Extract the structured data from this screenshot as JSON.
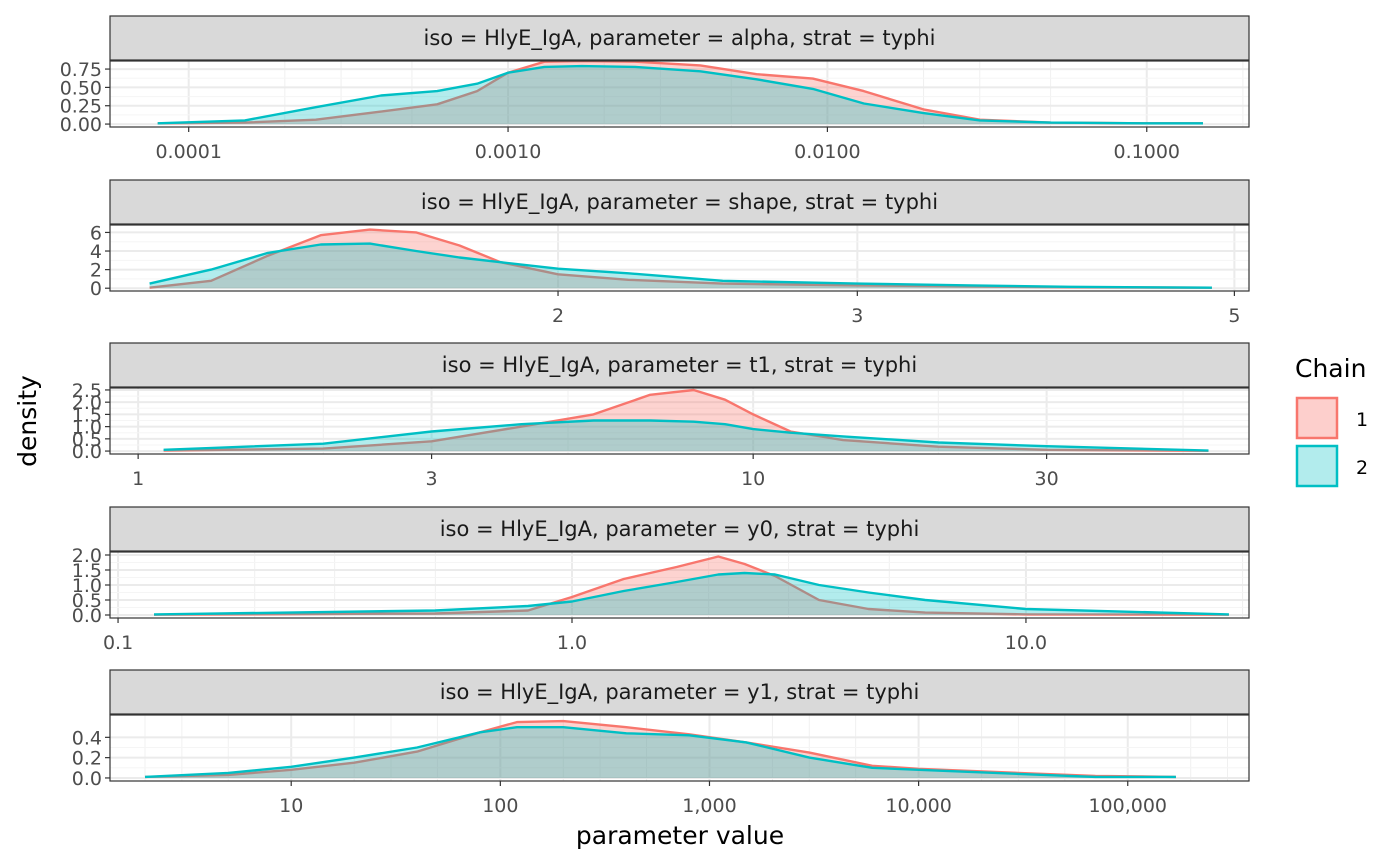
{
  "chart_data": {
    "type": "area",
    "facets": [
      {
        "strip": "iso = HlyE_IgA, parameter = alpha, strat = typhi",
        "x_log": true,
        "x_range": [
          5.67e-05,
          0.209
        ],
        "x_ticks": [
          0.0001,
          0.001,
          0.01,
          0.1
        ],
        "x_tick_labels": [
          "0.0001",
          "0.0010",
          "0.0100",
          "0.1000"
        ],
        "y_range": [
          -0.04,
          0.86
        ],
        "y_ticks": [
          0,
          0.25,
          0.5,
          0.75
        ],
        "y_tick_labels": [
          "0.00",
          "0.25",
          "0.50",
          "0.75"
        ],
        "series": [
          {
            "name": "1",
            "x": [
              8e-05,
              0.00015,
              0.00025,
              0.0004,
              0.0006,
              0.0008,
              0.001,
              0.0013,
              0.0017,
              0.0025,
              0.004,
              0.006,
              0.009,
              0.013,
              0.02,
              0.03,
              0.05,
              0.1,
              0.15
            ],
            "y": [
              0.01,
              0.02,
              0.06,
              0.17,
              0.27,
              0.45,
              0.7,
              0.85,
              0.86,
              0.85,
              0.8,
              0.68,
              0.62,
              0.45,
              0.2,
              0.06,
              0.02,
              0.01,
              0.01
            ]
          },
          {
            "name": "2",
            "x": [
              8e-05,
              0.00015,
              0.00025,
              0.0004,
              0.0006,
              0.0008,
              0.001,
              0.0013,
              0.0017,
              0.0025,
              0.004,
              0.006,
              0.009,
              0.013,
              0.02,
              0.03,
              0.05,
              0.1,
              0.15
            ],
            "y": [
              0.01,
              0.05,
              0.23,
              0.39,
              0.45,
              0.55,
              0.7,
              0.78,
              0.79,
              0.78,
              0.72,
              0.61,
              0.48,
              0.28,
              0.15,
              0.05,
              0.02,
              0.01,
              0.01
            ]
          }
        ]
      },
      {
        "strip": "iso = HlyE_IgA, parameter = shape, strat = typhi",
        "x_log": true,
        "x_range": [
          1.09,
          5.1
        ],
        "x_ticks": [
          2,
          3,
          5
        ],
        "x_tick_labels": [
          "2",
          "3",
          "5"
        ],
        "y_range": [
          -0.3,
          6.8
        ],
        "y_ticks": [
          0,
          2,
          4,
          6
        ],
        "y_tick_labels": [
          "0",
          "2",
          "4",
          "6"
        ],
        "series": [
          {
            "name": "1",
            "x": [
              1.15,
              1.25,
              1.35,
              1.45,
              1.55,
              1.65,
              1.75,
              1.85,
              2.0,
              2.2,
              2.5,
              3.0,
              3.5,
              4.0,
              4.85
            ],
            "y": [
              0.05,
              0.8,
              3.5,
              5.7,
              6.3,
              6.0,
              4.6,
              2.8,
              1.5,
              0.9,
              0.5,
              0.3,
              0.2,
              0.1,
              0.05
            ]
          },
          {
            "name": "2",
            "x": [
              1.15,
              1.25,
              1.35,
              1.45,
              1.55,
              1.65,
              1.75,
              1.85,
              2.0,
              2.2,
              2.5,
              3.0,
              3.5,
              4.0,
              4.85
            ],
            "y": [
              0.5,
              2.0,
              3.8,
              4.7,
              4.8,
              4.0,
              3.3,
              2.8,
              2.1,
              1.6,
              0.8,
              0.5,
              0.3,
              0.15,
              0.05
            ]
          }
        ]
      },
      {
        "strip": "iso = HlyE_IgA, parameter = t1, strat = typhi",
        "x_log": true,
        "x_range": [
          0.9,
          64
        ],
        "x_ticks": [
          1,
          3,
          10,
          30
        ],
        "x_tick_labels": [
          "1",
          "3",
          "10",
          "30"
        ],
        "y_range": [
          -0.12,
          2.58
        ],
        "y_ticks": [
          0,
          0.5,
          1.0,
          1.5,
          2.0,
          2.5
        ],
        "y_tick_labels": [
          "0.0",
          "0.5",
          "1.0",
          "1.5",
          "2.0",
          "2.5"
        ],
        "series": [
          {
            "name": "1",
            "x": [
              1.1,
              2,
              3,
              4.2,
              5.5,
              6.8,
              8,
              9,
              10,
              11.5,
              14,
              20,
              30,
              55
            ],
            "y": [
              0.02,
              0.1,
              0.4,
              1.0,
              1.5,
              2.3,
              2.5,
              2.1,
              1.5,
              0.8,
              0.45,
              0.18,
              0.05,
              0.01
            ]
          },
          {
            "name": "2",
            "x": [
              1.1,
              2,
              3,
              4.2,
              5.5,
              6.8,
              8,
              9,
              10,
              11.5,
              14,
              20,
              30,
              55
            ],
            "y": [
              0.05,
              0.3,
              0.8,
              1.1,
              1.25,
              1.25,
              1.2,
              1.1,
              0.9,
              0.75,
              0.6,
              0.35,
              0.2,
              0.02
            ]
          }
        ]
      },
      {
        "strip": "iso = HlyE_IgA, parameter = y0, strat = typhi",
        "x_log": true,
        "x_range": [
          0.096,
          31
        ],
        "x_ticks": [
          0.1,
          1.0,
          10.0
        ],
        "x_tick_labels": [
          "0.1",
          "1.0",
          "10.0"
        ],
        "y_range": [
          -0.1,
          2.1
        ],
        "y_ticks": [
          0,
          0.5,
          1.0,
          1.5,
          2.0
        ],
        "y_tick_labels": [
          "0.0",
          "0.5",
          "1.0",
          "1.5",
          "2.0"
        ],
        "series": [
          {
            "name": "1",
            "x": [
              0.12,
              0.5,
              0.8,
              1.0,
              1.3,
              1.7,
              2.1,
              2.4,
              2.8,
              3.5,
              4.5,
              6,
              10,
              28
            ],
            "y": [
              0.01,
              0.05,
              0.15,
              0.6,
              1.2,
              1.6,
              1.95,
              1.7,
              1.3,
              0.5,
              0.2,
              0.08,
              0.02,
              0.01
            ]
          },
          {
            "name": "2",
            "x": [
              0.12,
              0.5,
              0.8,
              1.0,
              1.3,
              1.7,
              2.1,
              2.4,
              2.8,
              3.5,
              4.5,
              6,
              10,
              28
            ],
            "y": [
              0.02,
              0.15,
              0.3,
              0.45,
              0.8,
              1.1,
              1.35,
              1.4,
              1.35,
              1.0,
              0.75,
              0.5,
              0.2,
              0.02
            ]
          }
        ]
      },
      {
        "strip": "iso = HlyE_IgA, parameter = y1, strat = typhi",
        "x_log": true,
        "x_range": [
          1.36,
          380000
        ],
        "x_ticks": [
          10,
          100,
          1000,
          10000,
          100000
        ],
        "x_tick_labels": [
          "10",
          "100",
          "1,000",
          "10,000",
          "100,000"
        ],
        "y_range": [
          -0.03,
          0.62
        ],
        "y_ticks": [
          0,
          0.2,
          0.4
        ],
        "y_tick_labels": [
          "0.0",
          "0.2",
          "0.4"
        ],
        "series": [
          {
            "name": "1",
            "x": [
              2,
              5,
              10,
              20,
              40,
              80,
              120,
              200,
              400,
              800,
              1500,
              3000,
              6000,
              10000,
              30000,
              70000,
              170000
            ],
            "y": [
              0.01,
              0.03,
              0.08,
              0.15,
              0.26,
              0.45,
              0.55,
              0.56,
              0.5,
              0.43,
              0.35,
              0.25,
              0.12,
              0.09,
              0.05,
              0.02,
              0.01
            ]
          },
          {
            "name": "2",
            "x": [
              2,
              5,
              10,
              20,
              40,
              80,
              120,
              200,
              400,
              800,
              1500,
              3000,
              6000,
              10000,
              30000,
              70000,
              170000
            ],
            "y": [
              0.01,
              0.05,
              0.11,
              0.2,
              0.3,
              0.45,
              0.5,
              0.5,
              0.44,
              0.42,
              0.35,
              0.2,
              0.1,
              0.08,
              0.04,
              0.01,
              0.01
            ]
          }
        ]
      }
    ],
    "xlabel": "parameter value",
    "ylabel": "density",
    "legend": {
      "title": "Chain",
      "entries": [
        "1",
        "2"
      ],
      "placement": "right"
    },
    "colors": {
      "1": "#F8766D",
      "2": "#00BFC4"
    },
    "grid": true
  }
}
